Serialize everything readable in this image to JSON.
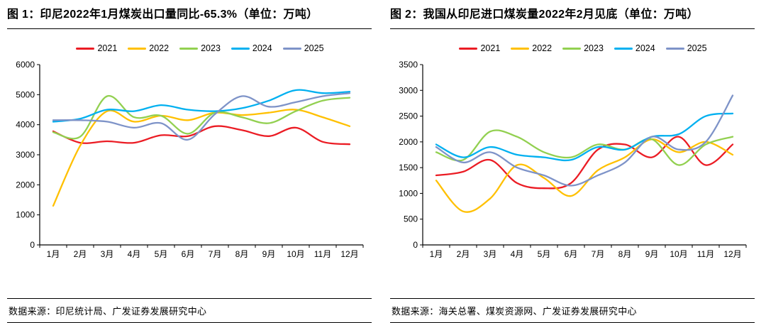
{
  "chart_data": [
    {
      "type": "line",
      "title": "图 1：印尼2022年1月煤炭出口量同比-65.3%（单位：万吨）",
      "source": "数据来源：印尼统计局、广发证券发展研究中心",
      "categories": [
        "1月",
        "2月",
        "3月",
        "4月",
        "5月",
        "6月",
        "7月",
        "8月",
        "9月",
        "10月",
        "11月",
        "12月"
      ],
      "ylim": [
        0,
        6000
      ],
      "ytick_interval": 1000,
      "grid": false,
      "legend_position": "top",
      "series": [
        {
          "name": "2021",
          "color": "#eb1c24",
          "values": [
            3780,
            3400,
            3450,
            3400,
            3650,
            3620,
            3950,
            3820,
            3620,
            3900,
            3430,
            3350
          ]
        },
        {
          "name": "2022",
          "color": "#ffc000",
          "values": [
            1300,
            3300,
            4450,
            4100,
            4300,
            4150,
            4400,
            4320,
            4400,
            4500,
            4250,
            3950
          ]
        },
        {
          "name": "2023",
          "color": "#92d050",
          "values": [
            3750,
            3600,
            4950,
            4250,
            4300,
            3700,
            4400,
            4250,
            4050,
            4450,
            4800,
            4900
          ]
        },
        {
          "name": "2024",
          "color": "#00b0f0",
          "values": [
            4100,
            4200,
            4500,
            4450,
            4650,
            4500,
            4450,
            4550,
            4800,
            5150,
            5050,
            5100
          ]
        },
        {
          "name": "2025",
          "color": "#7e93c8",
          "values": [
            4150,
            4150,
            4100,
            3900,
            4050,
            3500,
            4350,
            4950,
            4600,
            4750,
            4950,
            5050
          ]
        }
      ]
    },
    {
      "type": "line",
      "title": "图 2：我国从印尼进口煤炭量2022年2月见底（单位：万吨）",
      "source": "数据来源：海关总署、煤炭资源网、广发证券发展研究中心",
      "categories": [
        "1月",
        "2月",
        "3月",
        "4月",
        "5月",
        "6月",
        "7月",
        "8月",
        "9月",
        "10月",
        "11月",
        "12月"
      ],
      "ylim": [
        0,
        3500
      ],
      "ytick_interval": 500,
      "grid": false,
      "legend_position": "top",
      "series": [
        {
          "name": "2021",
          "color": "#eb1c24",
          "values": [
            1350,
            1420,
            1650,
            1200,
            1100,
            1200,
            1850,
            1950,
            1700,
            2100,
            1550,
            1950
          ]
        },
        {
          "name": "2022",
          "color": "#ffc000",
          "values": [
            1250,
            650,
            900,
            1550,
            1300,
            950,
            1450,
            1700,
            2050,
            1800,
            2000,
            1750
          ]
        },
        {
          "name": "2023",
          "color": "#92d050",
          "values": [
            1800,
            1650,
            2200,
            2100,
            1800,
            1700,
            1950,
            1850,
            2050,
            1550,
            1950,
            2100
          ]
        },
        {
          "name": "2024",
          "color": "#00b0f0",
          "values": [
            1950,
            1700,
            1900,
            1750,
            1700,
            1650,
            1900,
            1850,
            2100,
            2150,
            2500,
            2550
          ]
        },
        {
          "name": "2025",
          "color": "#7e93c8",
          "values": [
            1900,
            1600,
            1800,
            1500,
            1350,
            1150,
            1350,
            1600,
            2100,
            1850,
            2000,
            2900
          ]
        }
      ]
    }
  ]
}
